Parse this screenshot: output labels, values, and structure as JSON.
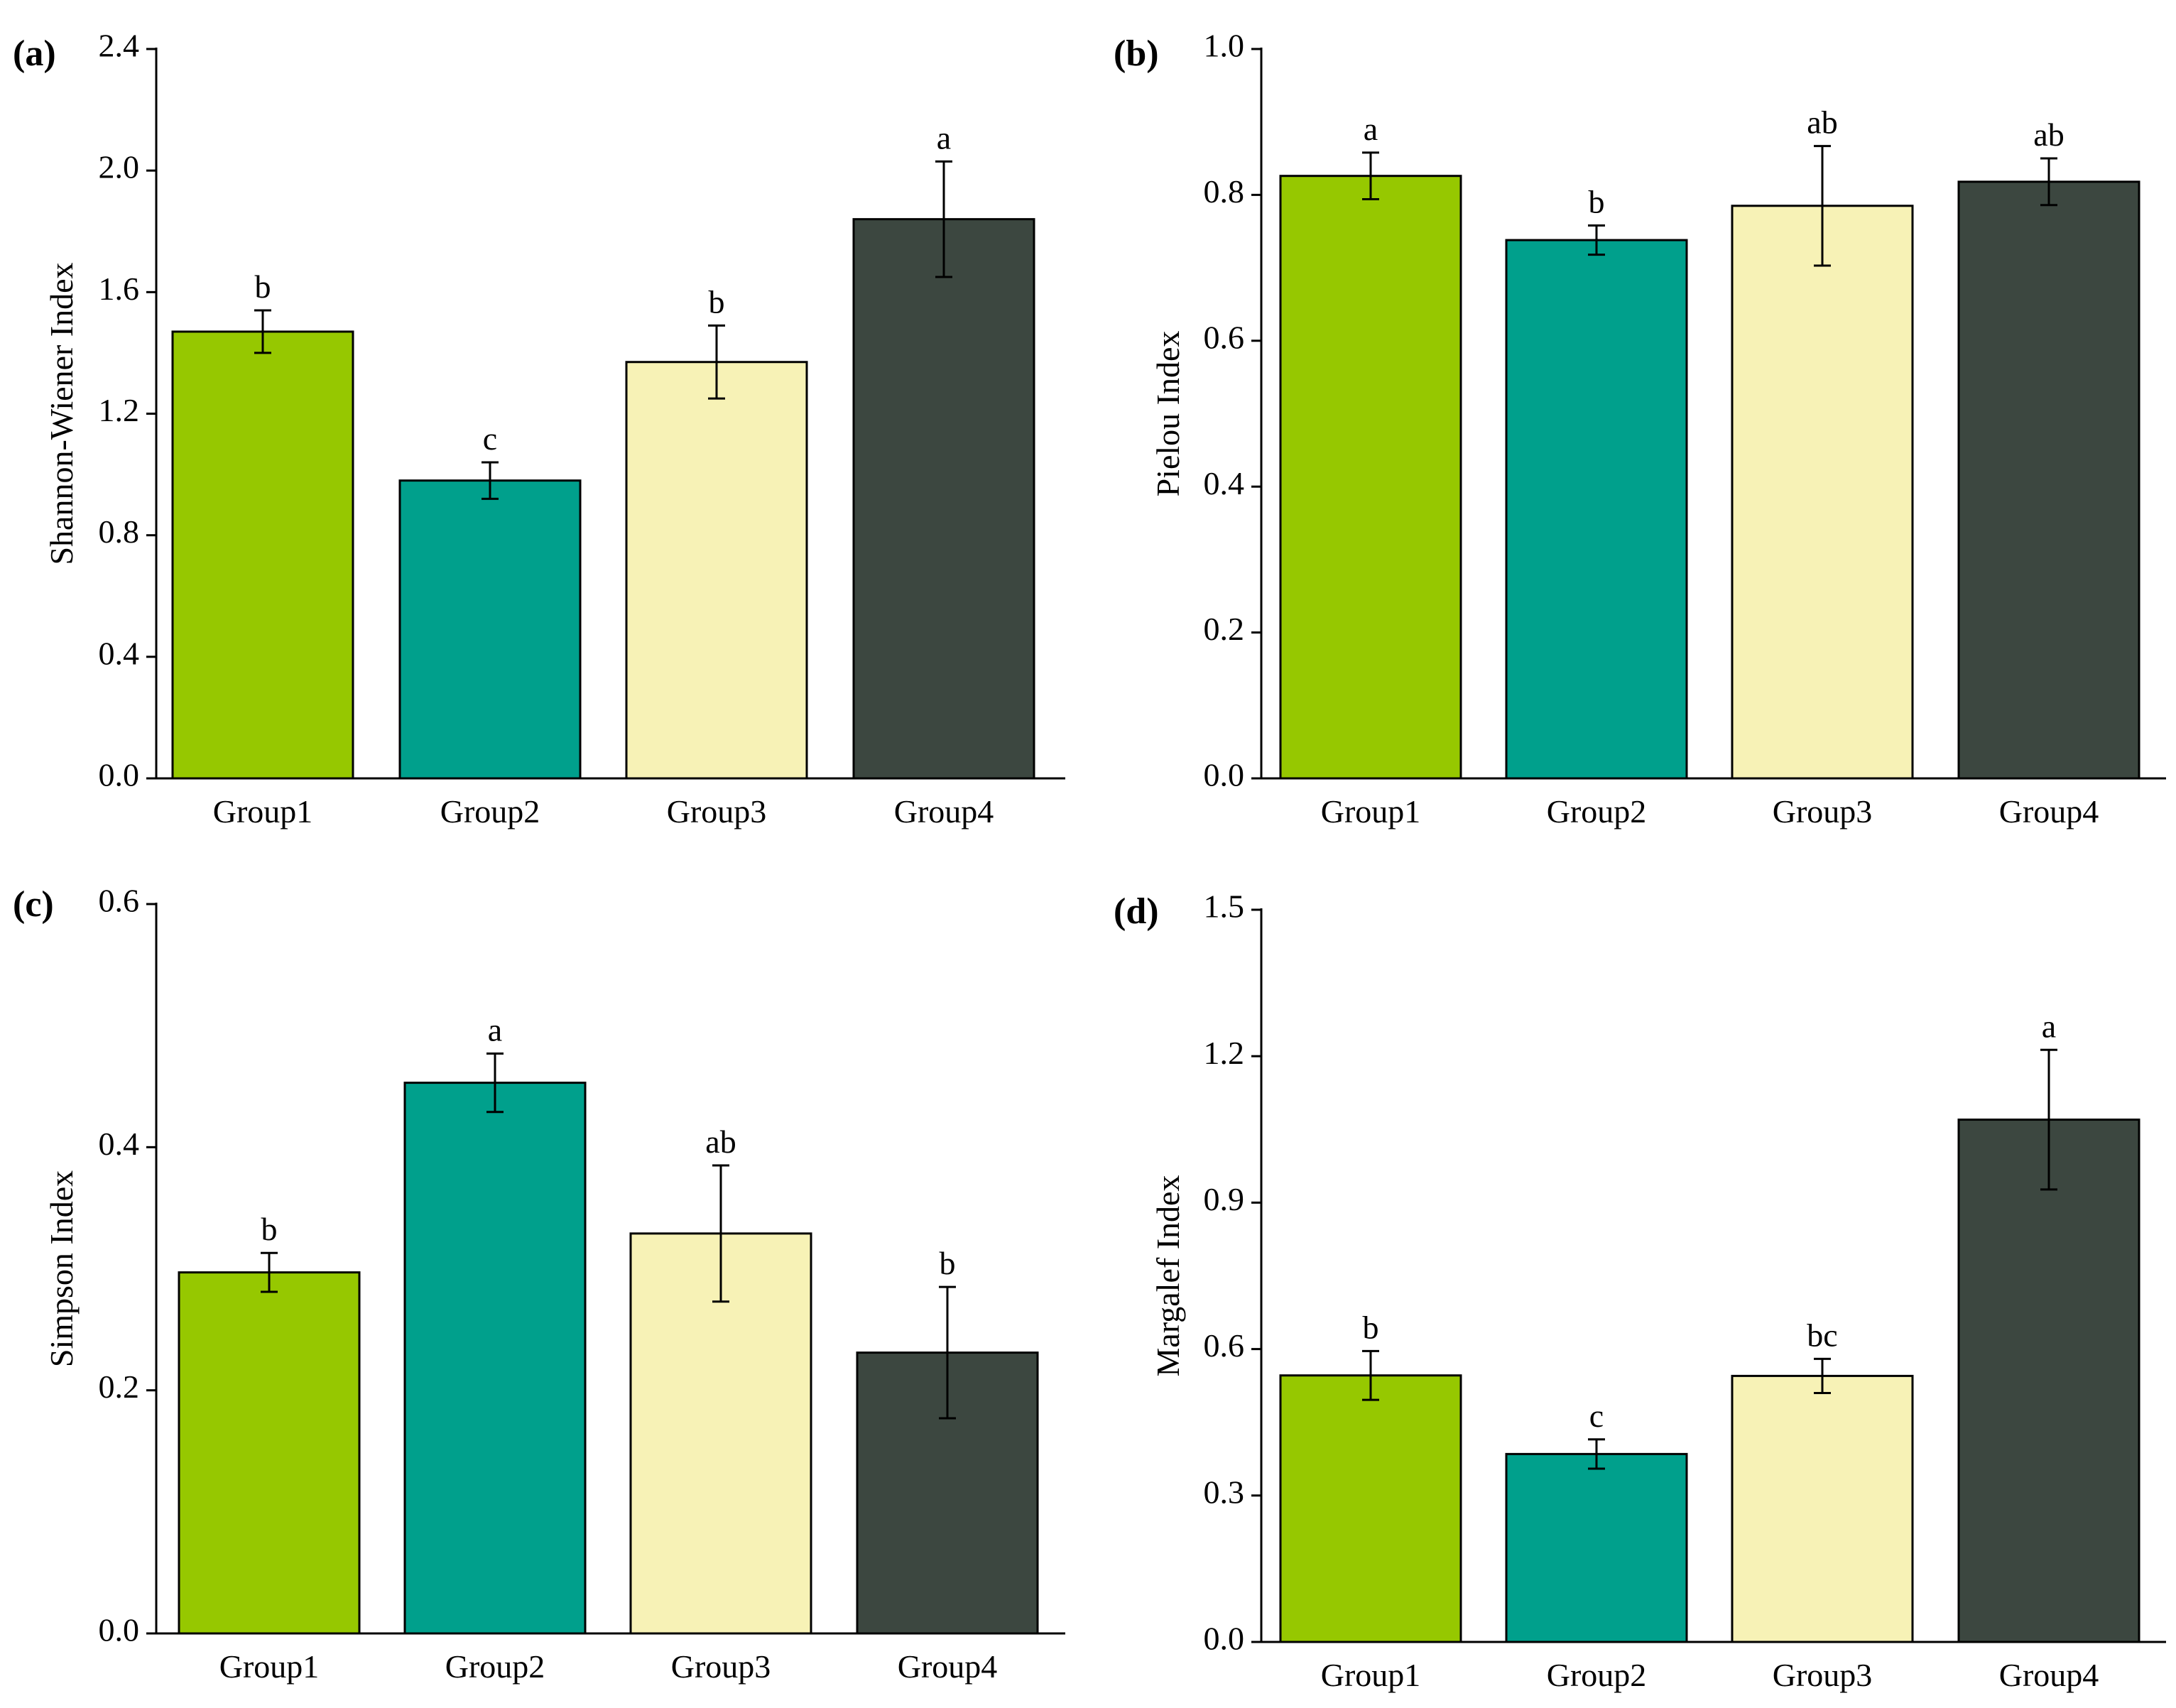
{
  "chart_data": [
    {
      "type": "bar",
      "panel": "(a)",
      "ylabel": "Shannon-Wiener Index",
      "categories": [
        "Group1",
        "Group2",
        "Group3",
        "Group4"
      ],
      "values": [
        1.47,
        0.98,
        1.37,
        1.84
      ],
      "errors": [
        0.07,
        0.06,
        0.12,
        0.19
      ],
      "significance": [
        "b",
        "c",
        "b",
        "a"
      ],
      "ylim": [
        0,
        2.4
      ],
      "yticks": [
        0.0,
        0.4,
        0.8,
        1.2,
        1.6,
        2.0,
        2.4
      ],
      "ytick_labels": [
        "0.0",
        "0.4",
        "0.8",
        "1.2",
        "1.6",
        "2.0",
        "2.4"
      ],
      "colors": [
        "#96c800",
        "#00a08c",
        "#f7f2b6",
        "#3c4740"
      ]
    },
    {
      "type": "bar",
      "panel": "(b)",
      "ylabel": "Pielou Index",
      "categories": [
        "Group1",
        "Group2",
        "Group3",
        "Group4"
      ],
      "values": [
        0.826,
        0.738,
        0.785,
        0.818
      ],
      "errors": [
        0.032,
        0.02,
        0.082,
        0.032
      ],
      "significance": [
        "a",
        "b",
        "ab",
        "ab"
      ],
      "ylim": [
        0,
        1.0
      ],
      "yticks": [
        0.0,
        0.2,
        0.4,
        0.6,
        0.8,
        1.0
      ],
      "ytick_labels": [
        "0.0",
        "0.2",
        "0.4",
        "0.6",
        "0.8",
        "1.0"
      ],
      "colors": [
        "#96c800",
        "#00a08c",
        "#f7f2b6",
        "#3c4740"
      ]
    },
    {
      "type": "bar",
      "panel": "(c)",
      "ylabel": "Simpson Index",
      "categories": [
        "Group1",
        "Group2",
        "Group3",
        "Group4"
      ],
      "values": [
        0.297,
        0.453,
        0.329,
        0.231
      ],
      "errors": [
        0.016,
        0.024,
        0.056,
        0.054
      ],
      "significance": [
        "b",
        "a",
        "ab",
        "b"
      ],
      "ylim": [
        0,
        0.6
      ],
      "yticks": [
        0.0,
        0.2,
        0.4,
        0.6
      ],
      "ytick_labels": [
        "0.0",
        "0.2",
        "0.4",
        "0.6"
      ],
      "colors": [
        "#96c800",
        "#00a08c",
        "#f7f2b6",
        "#3c4740"
      ]
    },
    {
      "type": "bar",
      "panel": "(d)",
      "ylabel": "Margalef Index",
      "categories": [
        "Group1",
        "Group2",
        "Group3",
        "Group4"
      ],
      "values": [
        0.546,
        0.385,
        0.545,
        1.07
      ],
      "errors": [
        0.05,
        0.03,
        0.035,
        0.143
      ],
      "significance": [
        "b",
        "c",
        "bc",
        "a"
      ],
      "ylim": [
        0,
        1.5
      ],
      "yticks": [
        0.0,
        0.3,
        0.6,
        0.9,
        1.2,
        1.5
      ],
      "ytick_labels": [
        "0.0",
        "0.3",
        "0.6",
        "0.9",
        "1.2",
        "1.5"
      ],
      "colors": [
        "#96c800",
        "#00a08c",
        "#f7f2b6",
        "#3c4740"
      ]
    }
  ]
}
